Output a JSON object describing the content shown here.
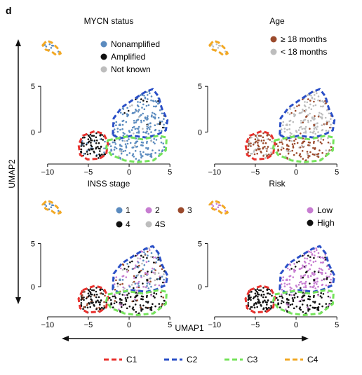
{
  "figure": {
    "panel_letter": "d",
    "x_axis_label": "UMAP1",
    "y_axis_label": "UMAP2"
  },
  "cluster_legend": [
    {
      "label": "C1",
      "color": "#e8322e"
    },
    {
      "label": "C2",
      "color": "#2a4fc7"
    },
    {
      "label": "C3",
      "color": "#74e35a"
    },
    {
      "label": "C4",
      "color": "#f2a824"
    }
  ],
  "chart_data": [
    {
      "type": "scatter",
      "title": "MYCN status",
      "xticks": [
        -10,
        -5,
        0,
        5
      ],
      "yticks": [
        0,
        5
      ],
      "xlim": [
        -10.5,
        5.5
      ],
      "ylim": [
        -3.5,
        10
      ],
      "legend_position": "top-right",
      "series": [
        {
          "name": "Nonamplified",
          "color": "#5b8bbf"
        },
        {
          "name": "Amplified",
          "color": "#111111"
        },
        {
          "name": "Not known",
          "color": "#bdbdbd"
        }
      ]
    },
    {
      "type": "scatter",
      "title": "Age",
      "xticks": [
        -10,
        -5,
        0,
        5
      ],
      "yticks": [
        0,
        5
      ],
      "xlim": [
        -10.5,
        5.5
      ],
      "ylim": [
        -3.5,
        10
      ],
      "legend_position": "top-right",
      "series": [
        {
          "name": "≥ 18 months",
          "color": "#9b4a2c"
        },
        {
          "name": "< 18 months",
          "color": "#bdbdbd"
        }
      ]
    },
    {
      "type": "scatter",
      "title": "INSS stage",
      "xticks": [
        -10,
        -5,
        0,
        5
      ],
      "yticks": [
        0,
        5
      ],
      "xlim": [
        -10.5,
        5.5
      ],
      "ylim": [
        -3.5,
        10
      ],
      "legend_position": "top-right",
      "series": [
        {
          "name": "1",
          "color": "#5b8bbf"
        },
        {
          "name": "2",
          "color": "#c77dd1"
        },
        {
          "name": "3",
          "color": "#9b4a2c"
        },
        {
          "name": "4",
          "color": "#111111"
        },
        {
          "name": "4S",
          "color": "#bdbdbd"
        }
      ]
    },
    {
      "type": "scatter",
      "title": "Risk",
      "xticks": [
        -10,
        -5,
        0,
        5
      ],
      "yticks": [
        0,
        5
      ],
      "xlim": [
        -10.5,
        5.5
      ],
      "ylim": [
        -3.5,
        10
      ],
      "legend_position": "top-right",
      "series": [
        {
          "name": "Low",
          "color": "#c77dd1"
        },
        {
          "name": "High",
          "color": "#111111"
        }
      ]
    }
  ],
  "clusters": [
    {
      "name": "C1",
      "color": "#e8322e",
      "polygon": [
        [
          -5.7,
          -0.4
        ],
        [
          -4.2,
          0.1
        ],
        [
          -3.1,
          -0.2
        ],
        [
          -2.6,
          -1.2
        ],
        [
          -2.8,
          -2.4
        ],
        [
          -3.6,
          -2.9
        ],
        [
          -5.1,
          -3.0
        ],
        [
          -6.0,
          -2.5
        ],
        [
          -6.2,
          -1.4
        ]
      ]
    },
    {
      "name": "C2",
      "color": "#2a4fc7",
      "polygon": [
        [
          -2.0,
          -0.3
        ],
        [
          -1.9,
          1.5
        ],
        [
          -0.9,
          2.7
        ],
        [
          0.6,
          3.6
        ],
        [
          2.0,
          4.4
        ],
        [
          2.9,
          4.7
        ],
        [
          3.6,
          3.9
        ],
        [
          4.0,
          2.6
        ],
        [
          4.7,
          1.3
        ],
        [
          4.5,
          0.2
        ],
        [
          3.4,
          -0.3
        ],
        [
          2.1,
          -0.6
        ],
        [
          0.4,
          -0.4
        ],
        [
          -1.2,
          -0.7
        ]
      ]
    },
    {
      "name": "C3",
      "color": "#74e35a",
      "polygon": [
        [
          -2.6,
          -0.9
        ],
        [
          -0.3,
          -0.5
        ],
        [
          1.6,
          -0.8
        ],
        [
          3.6,
          -0.4
        ],
        [
          4.6,
          -0.6
        ],
        [
          4.5,
          -2.0
        ],
        [
          3.0,
          -3.1
        ],
        [
          1.0,
          -3.3
        ],
        [
          -0.6,
          -3.1
        ],
        [
          -2.2,
          -2.5
        ],
        [
          -2.8,
          -1.7
        ]
      ]
    },
    {
      "name": "C4",
      "color": "#f2a824",
      "polygon": [
        [
          -10.6,
          9.5
        ],
        [
          -10.1,
          10.0
        ],
        [
          -9.5,
          9.8
        ],
        [
          -8.8,
          9.2
        ],
        [
          -8.4,
          8.6
        ],
        [
          -8.9,
          8.4
        ],
        [
          -9.5,
          8.8
        ],
        [
          -10.2,
          9.0
        ]
      ]
    }
  ]
}
